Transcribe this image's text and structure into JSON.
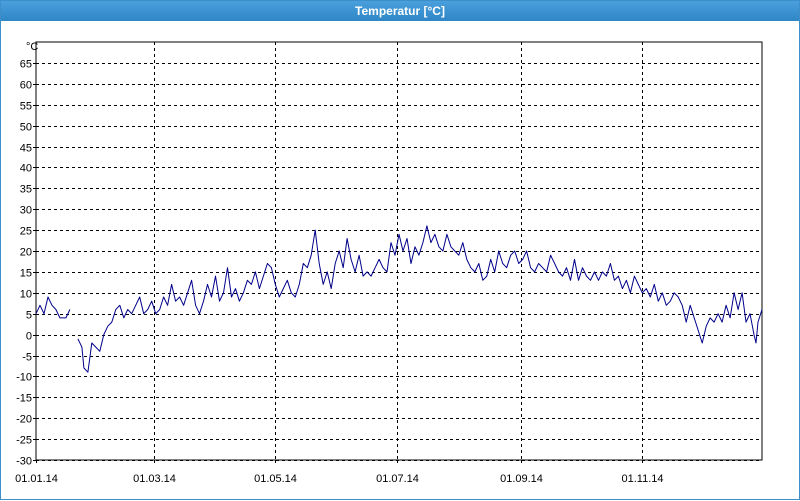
{
  "window": {
    "title": "Temperatur [°C]"
  },
  "colors": {
    "title_bar": "#3a93d1",
    "series_line": "#00008b",
    "grid": "#000000",
    "background": "#ffffff"
  },
  "chart_data": {
    "type": "line",
    "title": "Temperatur [°C]",
    "ylabel": "°C",
    "xlabel": "",
    "ylim": [
      -30,
      70
    ],
    "xlim": [
      "2014-01-01",
      "2014-12-31"
    ],
    "grid": true,
    "y_ticks": [
      -30,
      -25,
      -20,
      -15,
      -10,
      -5,
      0,
      5,
      10,
      15,
      20,
      25,
      30,
      35,
      40,
      45,
      50,
      55,
      60,
      65
    ],
    "x_ticks": [
      {
        "date": "2014-01-01",
        "label": "01.01.14"
      },
      {
        "date": "2014-03-01",
        "label": "01.03.14"
      },
      {
        "date": "2014-05-01",
        "label": "01.05.14"
      },
      {
        "date": "2014-07-01",
        "label": "01.07.14"
      },
      {
        "date": "2014-09-01",
        "label": "01.09.14"
      },
      {
        "date": "2014-11-01",
        "label": "01.11.14"
      }
    ],
    "series": [
      {
        "segments": [
          [
            [
              "2014-01-01",
              5
            ],
            [
              "2014-01-03",
              7
            ],
            [
              "2014-01-05",
              5
            ],
            [
              "2014-01-07",
              9
            ],
            [
              "2014-01-09",
              7
            ],
            [
              "2014-01-11",
              6
            ],
            [
              "2014-01-13",
              4
            ],
            [
              "2014-01-16",
              4
            ],
            [
              "2014-01-18",
              6
            ]
          ],
          [
            [
              "2014-01-22",
              -1
            ],
            [
              "2014-01-24",
              -3
            ],
            [
              "2014-01-25",
              -8
            ],
            [
              "2014-01-27",
              -9
            ],
            [
              "2014-01-29",
              -2
            ],
            [
              "2014-01-31",
              -3
            ],
            [
              "2014-02-02",
              -4
            ],
            [
              "2014-02-04",
              0
            ],
            [
              "2014-02-06",
              2
            ],
            [
              "2014-02-08",
              3
            ],
            [
              "2014-02-10",
              6
            ],
            [
              "2014-02-12",
              7
            ],
            [
              "2014-02-14",
              4
            ],
            [
              "2014-02-16",
              6
            ],
            [
              "2014-02-18",
              5
            ],
            [
              "2014-02-20",
              7
            ],
            [
              "2014-02-22",
              9
            ],
            [
              "2014-02-24",
              5
            ],
            [
              "2014-02-26",
              6
            ],
            [
              "2014-02-28",
              8
            ],
            [
              "2014-03-02",
              5
            ],
            [
              "2014-03-04",
              6
            ],
            [
              "2014-03-06",
              9
            ],
            [
              "2014-03-08",
              7
            ],
            [
              "2014-03-10",
              12
            ],
            [
              "2014-03-12",
              8
            ],
            [
              "2014-03-14",
              9
            ],
            [
              "2014-03-16",
              7
            ],
            [
              "2014-03-18",
              10
            ],
            [
              "2014-03-20",
              13
            ],
            [
              "2014-03-22",
              7
            ],
            [
              "2014-03-24",
              5
            ],
            [
              "2014-03-26",
              8
            ],
            [
              "2014-03-28",
              12
            ],
            [
              "2014-03-30",
              9
            ],
            [
              "2014-04-01",
              14
            ],
            [
              "2014-04-03",
              8
            ],
            [
              "2014-04-05",
              10
            ],
            [
              "2014-04-07",
              16
            ],
            [
              "2014-04-09",
              9
            ],
            [
              "2014-04-11",
              11
            ],
            [
              "2014-04-13",
              8
            ],
            [
              "2014-04-15",
              10
            ],
            [
              "2014-04-17",
              13
            ],
            [
              "2014-04-19",
              12
            ],
            [
              "2014-04-21",
              15
            ],
            [
              "2014-04-23",
              11
            ],
            [
              "2014-04-25",
              14
            ],
            [
              "2014-04-27",
              17
            ],
            [
              "2014-04-29",
              16
            ],
            [
              "2014-05-01",
              12
            ],
            [
              "2014-05-03",
              9
            ],
            [
              "2014-05-05",
              11
            ],
            [
              "2014-05-07",
              13
            ],
            [
              "2014-05-09",
              10
            ],
            [
              "2014-05-11",
              9
            ],
            [
              "2014-05-13",
              12
            ],
            [
              "2014-05-15",
              17
            ],
            [
              "2014-05-17",
              16
            ],
            [
              "2014-05-19",
              19
            ],
            [
              "2014-05-21",
              25
            ],
            [
              "2014-05-23",
              17
            ],
            [
              "2014-05-25",
              12
            ],
            [
              "2014-05-27",
              15
            ],
            [
              "2014-05-29",
              11
            ],
            [
              "2014-05-31",
              17
            ],
            [
              "2014-06-02",
              20
            ],
            [
              "2014-06-04",
              16
            ],
            [
              "2014-06-06",
              23
            ],
            [
              "2014-06-08",
              18
            ],
            [
              "2014-06-10",
              15
            ],
            [
              "2014-06-12",
              19
            ],
            [
              "2014-06-14",
              14
            ],
            [
              "2014-06-16",
              15
            ],
            [
              "2014-06-18",
              14
            ],
            [
              "2014-06-20",
              16
            ],
            [
              "2014-06-22",
              18
            ],
            [
              "2014-06-24",
              16
            ],
            [
              "2014-06-26",
              15
            ],
            [
              "2014-06-28",
              22
            ],
            [
              "2014-06-30",
              19
            ],
            [
              "2014-07-02",
              24
            ],
            [
              "2014-07-04",
              20
            ],
            [
              "2014-07-06",
              23
            ],
            [
              "2014-07-08",
              17
            ],
            [
              "2014-07-10",
              21
            ],
            [
              "2014-07-12",
              19
            ],
            [
              "2014-07-14",
              22
            ],
            [
              "2014-07-16",
              26
            ],
            [
              "2014-07-18",
              22
            ],
            [
              "2014-07-20",
              24
            ],
            [
              "2014-07-22",
              21
            ],
            [
              "2014-07-24",
              20
            ],
            [
              "2014-07-26",
              24
            ],
            [
              "2014-07-28",
              21
            ],
            [
              "2014-07-30",
              20
            ],
            [
              "2014-08-01",
              19
            ],
            [
              "2014-08-03",
              22
            ],
            [
              "2014-08-05",
              18
            ],
            [
              "2014-08-07",
              16
            ],
            [
              "2014-08-09",
              15
            ],
            [
              "2014-08-11",
              17
            ],
            [
              "2014-08-13",
              13
            ],
            [
              "2014-08-15",
              14
            ],
            [
              "2014-08-17",
              18
            ],
            [
              "2014-08-19",
              15
            ],
            [
              "2014-08-21",
              20
            ],
            [
              "2014-08-23",
              17
            ],
            [
              "2014-08-25",
              16
            ],
            [
              "2014-08-27",
              19
            ],
            [
              "2014-08-29",
              20
            ],
            [
              "2014-08-31",
              17
            ],
            [
              "2014-09-02",
              18
            ],
            [
              "2014-09-04",
              20
            ],
            [
              "2014-09-06",
              16
            ],
            [
              "2014-09-08",
              15
            ],
            [
              "2014-09-10",
              17
            ],
            [
              "2014-09-12",
              16
            ],
            [
              "2014-09-14",
              15
            ],
            [
              "2014-09-16",
              19
            ],
            [
              "2014-09-18",
              17
            ],
            [
              "2014-09-20",
              15
            ],
            [
              "2014-09-22",
              14
            ],
            [
              "2014-09-24",
              16
            ],
            [
              "2014-09-26",
              13
            ],
            [
              "2014-09-28",
              18
            ],
            [
              "2014-09-30",
              13
            ],
            [
              "2014-10-02",
              16
            ],
            [
              "2014-10-04",
              14
            ],
            [
              "2014-10-06",
              13
            ],
            [
              "2014-10-08",
              15
            ],
            [
              "2014-10-10",
              13
            ],
            [
              "2014-10-12",
              15
            ],
            [
              "2014-10-14",
              14
            ],
            [
              "2014-10-16",
              17
            ],
            [
              "2014-10-18",
              13
            ],
            [
              "2014-10-20",
              14
            ],
            [
              "2014-10-22",
              11
            ],
            [
              "2014-10-24",
              13
            ],
            [
              "2014-10-26",
              10
            ],
            [
              "2014-10-28",
              14
            ],
            [
              "2014-10-30",
              12
            ],
            [
              "2014-11-01",
              10
            ],
            [
              "2014-11-03",
              11
            ],
            [
              "2014-11-05",
              9
            ],
            [
              "2014-11-07",
              12
            ],
            [
              "2014-11-09",
              8
            ],
            [
              "2014-11-11",
              10
            ],
            [
              "2014-11-13",
              7
            ],
            [
              "2014-11-15",
              8
            ],
            [
              "2014-11-17",
              10
            ],
            [
              "2014-11-19",
              9
            ],
            [
              "2014-11-21",
              7
            ],
            [
              "2014-11-23",
              3
            ],
            [
              "2014-11-25",
              7
            ],
            [
              "2014-11-27",
              4
            ],
            [
              "2014-11-29",
              1
            ],
            [
              "2014-12-01",
              -2
            ],
            [
              "2014-12-03",
              2
            ],
            [
              "2014-12-05",
              4
            ],
            [
              "2014-12-07",
              3
            ],
            [
              "2014-12-09",
              5
            ],
            [
              "2014-12-11",
              3
            ],
            [
              "2014-12-13",
              7
            ],
            [
              "2014-12-15",
              4
            ],
            [
              "2014-12-17",
              10
            ],
            [
              "2014-12-19",
              6
            ],
            [
              "2014-12-21",
              10
            ],
            [
              "2014-12-23",
              3
            ],
            [
              "2014-12-25",
              5
            ],
            [
              "2014-12-27",
              0
            ],
            [
              "2014-12-28",
              -2
            ],
            [
              "2014-12-29",
              3
            ],
            [
              "2014-12-31",
              6
            ]
          ]
        ]
      }
    ]
  }
}
